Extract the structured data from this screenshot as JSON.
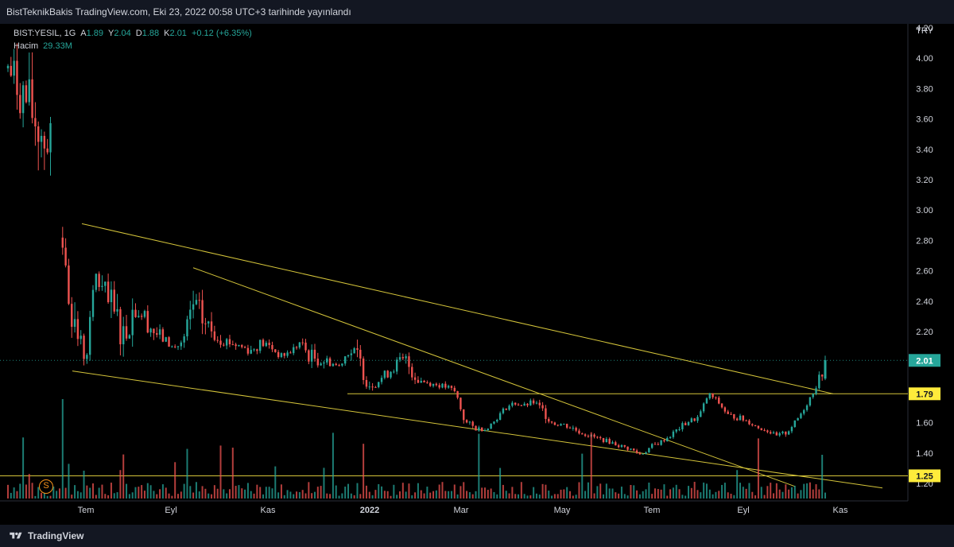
{
  "header": {
    "published_text": "BistTeknikBakis TradingView.com, Eki 23, 2022 00:58 UTC+3 tarihinde yayınlandı"
  },
  "legend": {
    "symbol": "BIST:YESIL, 1G",
    "o_label": "A",
    "o_value": "1.89",
    "h_label": "Y",
    "h_value": "2.04",
    "l_label": "D",
    "l_value": "1.88",
    "c_label": "K",
    "c_value": "2.01",
    "change": "+0.12 (+6.35%)",
    "volume_label": "Hacim",
    "volume_value": "29.33M"
  },
  "footer": {
    "brand": "TradingView"
  },
  "event_marker": {
    "symbol": "S"
  },
  "colors": {
    "up": "#26a69a",
    "down": "#ef5350",
    "trend": "#d4c43a",
    "level_bg": "#ffeb3b",
    "last_bg": "#26a69a",
    "text": "#d1d4dc"
  },
  "chart_data": {
    "type": "candlestick",
    "currency": "TRY",
    "ylim": [
      1.15,
      4.3
    ],
    "y_ticks": [
      "4.20",
      "4.00",
      "3.80",
      "3.60",
      "3.40",
      "3.20",
      "3.00",
      "2.80",
      "2.60",
      "2.40",
      "2.20",
      "2.00",
      "1.80",
      "1.60",
      "1.40",
      "1.20"
    ],
    "x_ticks": [
      {
        "label": "Tem",
        "bold": false
      },
      {
        "label": "Eyl",
        "bold": false
      },
      {
        "label": "Kas",
        "bold": false
      },
      {
        "label": "2022",
        "bold": true
      },
      {
        "label": "Mar",
        "bold": false
      },
      {
        "label": "May",
        "bold": false
      },
      {
        "label": "Tem",
        "bold": false
      },
      {
        "label": "Eyl",
        "bold": false
      },
      {
        "label": "Kas",
        "bold": false
      }
    ],
    "last_price": "2.01",
    "horizontal_levels": [
      "1.79",
      "1.25"
    ],
    "trendlines": [
      {
        "from": 2.91,
        "to": 1.79
      },
      {
        "from": 1.94,
        "to": 1.17
      },
      {
        "from": 2.62,
        "to": 1.18
      }
    ],
    "price_path": [
      [
        4.02,
        3.85
      ],
      [
        3.95,
        3.7
      ],
      [
        3.85,
        3.55
      ],
      [
        3.72,
        3.4
      ],
      [
        3.6,
        3.3
      ],
      [
        3.45,
        3.18
      ],
      [
        2.6,
        2.45
      ],
      [
        2.3,
        2.1
      ],
      [
        2.05,
        1.98
      ],
      [
        2.62,
        2.55
      ],
      [
        2.5,
        2.3
      ],
      [
        2.4,
        2.2
      ],
      [
        2.25,
        2.1
      ],
      [
        2.45,
        2.3
      ],
      [
        2.35,
        2.25
      ],
      [
        2.25,
        2.15
      ],
      [
        2.18,
        2.12
      ],
      [
        2.1,
        2.08
      ],
      [
        2.15,
        2.1
      ],
      [
        2.45,
        2.3
      ],
      [
        2.35,
        2.2
      ],
      [
        2.25,
        2.15
      ],
      [
        2.18,
        2.12
      ],
      [
        2.15,
        2.1
      ],
      [
        2.12,
        2.08
      ],
      [
        2.1,
        2.05
      ],
      [
        2.15,
        2.1
      ],
      [
        2.12,
        2.08
      ],
      [
        2.05,
        2.02
      ],
      [
        2.08,
        2.05
      ],
      [
        2.15,
        2.1
      ],
      [
        2.08,
        2.0
      ],
      [
        2.05,
        1.98
      ],
      [
        2.02,
        1.98
      ],
      [
        1.98,
        1.96
      ],
      [
        2.1,
        2.05
      ],
      [
        2.08,
        1.98
      ],
      [
        1.88,
        1.82
      ],
      [
        1.9,
        1.85
      ],
      [
        1.95,
        1.9
      ],
      [
        2.02,
        1.96
      ],
      [
        2.05,
        1.95
      ],
      [
        1.92,
        1.86
      ],
      [
        1.88,
        1.85
      ],
      [
        1.86,
        1.84
      ],
      [
        1.85,
        1.82
      ],
      [
        1.82,
        1.78
      ],
      [
        1.62,
        1.58
      ],
      [
        1.58,
        1.55
      ],
      [
        1.56,
        1.55
      ],
      [
        1.62,
        1.6
      ],
      [
        1.7,
        1.68
      ],
      [
        1.74,
        1.72
      ],
      [
        1.72,
        1.7
      ],
      [
        1.75,
        1.72
      ],
      [
        1.7,
        1.65
      ],
      [
        1.62,
        1.58
      ],
      [
        1.6,
        1.58
      ],
      [
        1.58,
        1.55
      ],
      [
        1.54,
        1.52
      ],
      [
        1.52,
        1.5
      ],
      [
        1.5,
        1.48
      ],
      [
        1.48,
        1.46
      ],
      [
        1.45,
        1.44
      ],
      [
        1.43,
        1.42
      ],
      [
        1.4,
        1.38
      ],
      [
        1.45,
        1.42
      ],
      [
        1.48,
        1.46
      ],
      [
        1.52,
        1.5
      ],
      [
        1.58,
        1.55
      ],
      [
        1.62,
        1.6
      ],
      [
        1.65,
        1.62
      ],
      [
        1.8,
        1.78
      ],
      [
        1.75,
        1.72
      ],
      [
        1.66,
        1.64
      ],
      [
        1.65,
        1.62
      ],
      [
        1.62,
        1.6
      ],
      [
        1.58,
        1.56
      ],
      [
        1.56,
        1.54
      ],
      [
        1.52,
        1.5
      ],
      [
        1.55,
        1.52
      ],
      [
        1.62,
        1.6
      ],
      [
        1.72,
        1.7
      ],
      [
        1.85,
        1.82
      ],
      [
        2.01,
        1.95
      ]
    ]
  }
}
